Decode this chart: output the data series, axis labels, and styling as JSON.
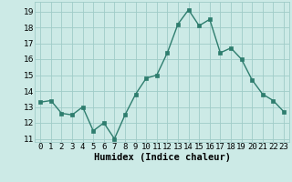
{
  "x": [
    0,
    1,
    2,
    3,
    4,
    5,
    6,
    7,
    8,
    9,
    10,
    11,
    12,
    13,
    14,
    15,
    16,
    17,
    18,
    19,
    20,
    21,
    22,
    23
  ],
  "y": [
    13.3,
    13.4,
    12.6,
    12.5,
    13.0,
    11.5,
    12.0,
    11.0,
    12.5,
    13.8,
    14.8,
    15.0,
    16.4,
    18.2,
    19.1,
    18.1,
    18.5,
    16.4,
    16.7,
    16.0,
    14.7,
    13.8,
    13.4,
    12.7
  ],
  "line_color": "#2e7d6e",
  "marker_color": "#2e7d6e",
  "bg_color": "#cceae6",
  "grid_color": "#9fccc7",
  "xlabel": "Humidex (Indice chaleur)",
  "xlim": [
    -0.5,
    23.5
  ],
  "ylim": [
    10.8,
    19.6
  ],
  "yticks": [
    11,
    12,
    13,
    14,
    15,
    16,
    17,
    18,
    19
  ],
  "xtick_labels": [
    "0",
    "1",
    "2",
    "3",
    "4",
    "5",
    "6",
    "7",
    "8",
    "9",
    "10",
    "11",
    "12",
    "13",
    "14",
    "15",
    "16",
    "17",
    "18",
    "19",
    "20",
    "21",
    "22",
    "23"
  ],
  "xlabel_fontsize": 7.5,
  "tick_fontsize": 6.5
}
